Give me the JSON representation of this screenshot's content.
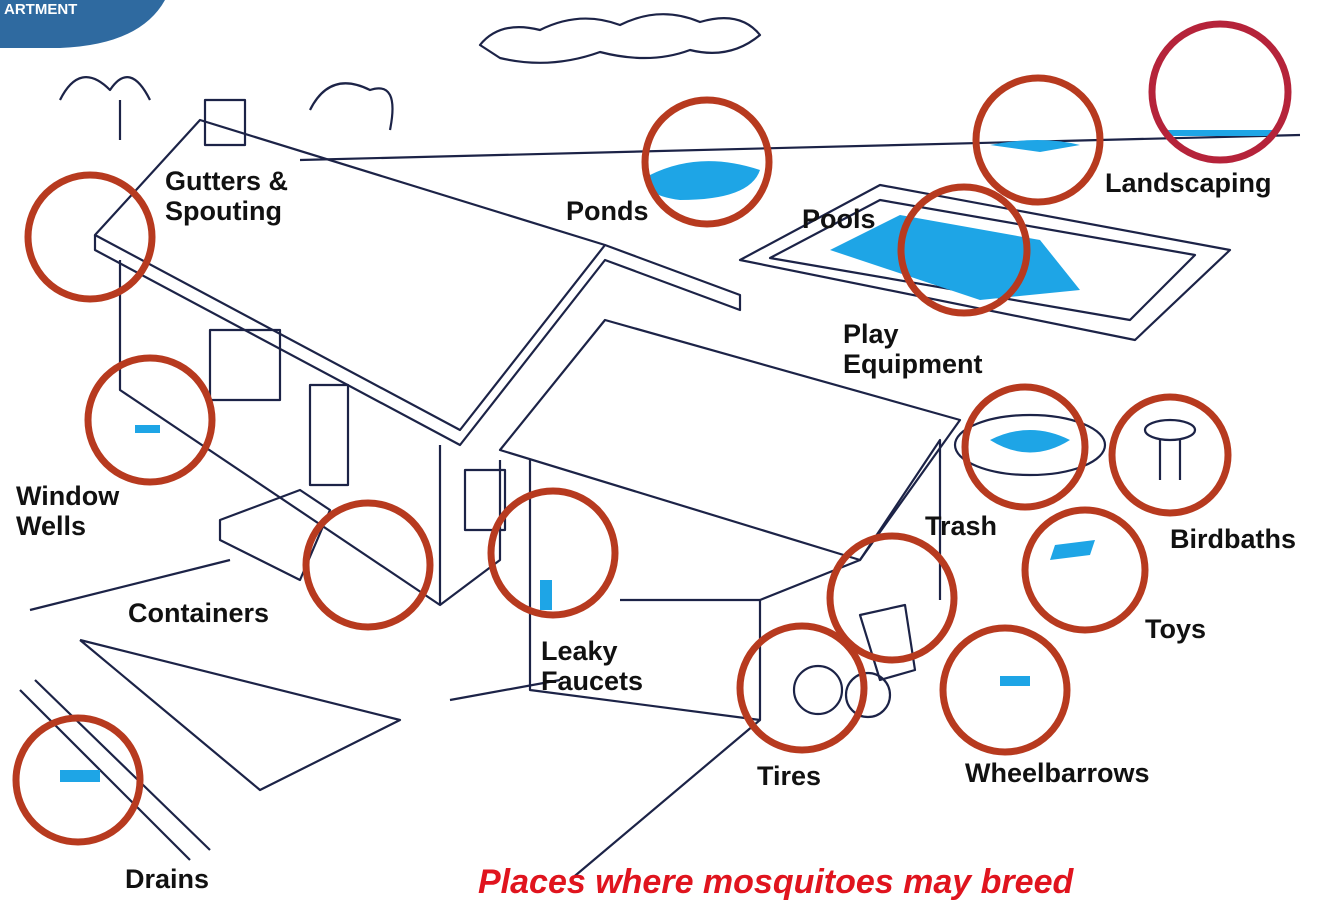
{
  "badge": "ARTMENT",
  "labels": {
    "gutters": [
      "Gutters &",
      "Spouting"
    ],
    "ponds": [
      "Ponds"
    ],
    "landscaping": [
      "Landscaping"
    ],
    "pools": [
      "Pools"
    ],
    "play_equipment": [
      "Play",
      "Equipment"
    ],
    "window_wells": [
      "Window",
      "Wells"
    ],
    "trash": [
      "Trash"
    ],
    "birdbaths": [
      "Birdbaths"
    ],
    "containers": [
      "Containers"
    ],
    "leaky_faucets": [
      "Leaky",
      "Faucets"
    ],
    "toys": [
      "Toys"
    ],
    "tires": [
      "Tires"
    ],
    "wheelbarrows": [
      "Wheelbarrows"
    ],
    "drains": [
      "Drains"
    ]
  },
  "caption": "Places where mosquitoes may breed"
}
